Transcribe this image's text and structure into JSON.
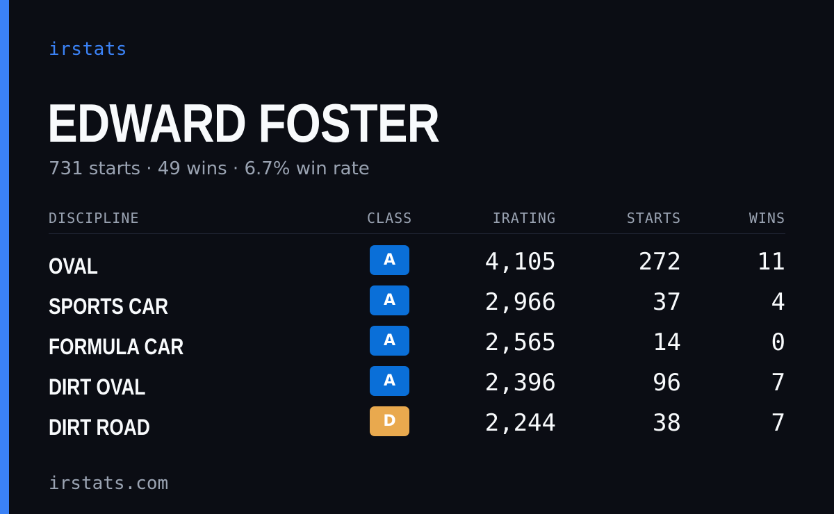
{
  "brand": "irstats",
  "driver": {
    "name": "EDWARD FOSTER",
    "summary": "731 starts · 49 wins · 6.7% win rate"
  },
  "table": {
    "headers": {
      "discipline": "DISCIPLINE",
      "class": "CLASS",
      "irating": "IRATING",
      "starts": "STARTS",
      "wins": "WINS"
    },
    "rows": [
      {
        "discipline": "OVAL",
        "class": "A",
        "irating": "4,105",
        "starts": "272",
        "wins": "11"
      },
      {
        "discipline": "SPORTS CAR",
        "class": "A",
        "irating": "2,966",
        "starts": "37",
        "wins": "4"
      },
      {
        "discipline": "FORMULA CAR",
        "class": "A",
        "irating": "2,565",
        "starts": "14",
        "wins": "0"
      },
      {
        "discipline": "DIRT OVAL",
        "class": "A",
        "irating": "2,396",
        "starts": "96",
        "wins": "7"
      },
      {
        "discipline": "DIRT ROAD",
        "class": "D",
        "irating": "2,244",
        "starts": "38",
        "wins": "7"
      }
    ]
  },
  "colors": {
    "accent": "#3b82f6",
    "class_A": "#0a6fd8",
    "class_D": "#e9a94e"
  },
  "footer": "irstats.com"
}
